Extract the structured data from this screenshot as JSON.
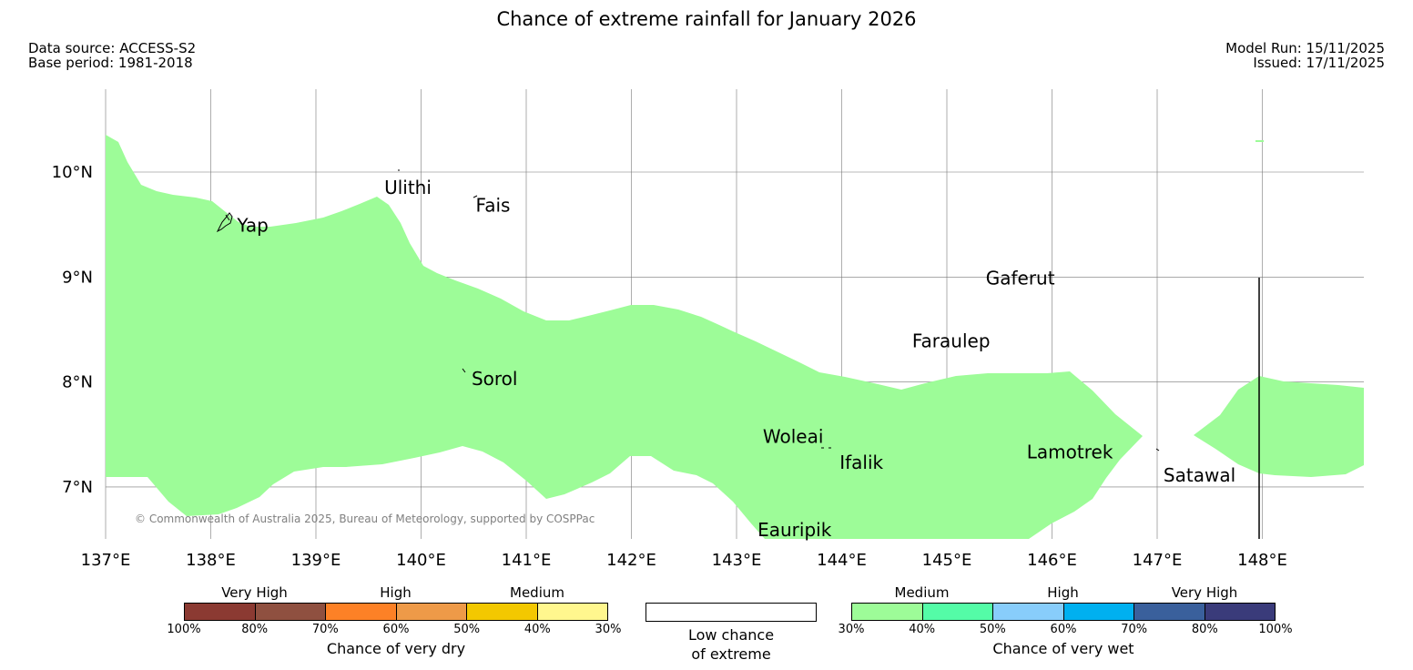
{
  "title": "Chance of extreme rainfall for January 2026",
  "meta": {
    "data_source": "Data source: ACCESS-S2",
    "base_period": "Base period: 1981-2018",
    "model_run": "Model Run: 15/11/2025",
    "issued": "Issued: 17/11/2025"
  },
  "map": {
    "fill_color": "#9dfc98",
    "lon_range": [
      137.0,
      149.0
    ],
    "lat_range": [
      6.5,
      10.8
    ],
    "lon_ticks": [
      {
        "value": 137,
        "label": "137°E"
      },
      {
        "value": 138,
        "label": "138°E"
      },
      {
        "value": 139,
        "label": "139°E"
      },
      {
        "value": 140,
        "label": "140°E"
      },
      {
        "value": 141,
        "label": "141°E"
      },
      {
        "value": 142,
        "label": "142°E"
      },
      {
        "value": 143,
        "label": "143°E"
      },
      {
        "value": 144,
        "label": "144°E"
      },
      {
        "value": 145,
        "label": "145°E"
      },
      {
        "value": 146,
        "label": "146°E"
      },
      {
        "value": 147,
        "label": "147°E"
      },
      {
        "value": 148,
        "label": "148°E"
      }
    ],
    "lat_ticks": [
      {
        "value": 10,
        "label": "10°N"
      },
      {
        "value": 9,
        "label": "9°N"
      },
      {
        "value": 8,
        "label": "8°N"
      },
      {
        "value": 7,
        "label": "7°N"
      }
    ],
    "islands": [
      {
        "name": "Yap",
        "lon": 138.25,
        "lat": 9.5
      },
      {
        "name": "Ulithi",
        "lon": 139.65,
        "lat": 9.86
      },
      {
        "name": "Fais",
        "lon": 140.52,
        "lat": 9.69
      },
      {
        "name": "Gaferut",
        "lon": 145.37,
        "lat": 9.0
      },
      {
        "name": "Faraulep",
        "lon": 144.67,
        "lat": 8.4
      },
      {
        "name": "Sorol",
        "lon": 140.48,
        "lat": 8.04
      },
      {
        "name": "Woleai",
        "lon": 143.25,
        "lat": 7.49
      },
      {
        "name": "Ifalik",
        "lon": 143.98,
        "lat": 7.24
      },
      {
        "name": "Lamotrek",
        "lon": 145.76,
        "lat": 7.34
      },
      {
        "name": "Satawal",
        "lon": 147.06,
        "lat": 7.12
      },
      {
        "name": "Eauripik",
        "lon": 143.2,
        "lat": 6.6
      }
    ],
    "copyright": "© Commonwealth of Australia 2025, Bureau of Meteorology, supported by COSPPac"
  },
  "legend": {
    "dry": {
      "label": "Chance of very dry",
      "categories": [
        "Very High",
        "High",
        "Medium"
      ],
      "colors": [
        "#8b3a32",
        "#8f5040",
        "#fd8126",
        "#ee9a48",
        "#f3c800",
        "#fff78e"
      ],
      "ticks": [
        "100%",
        "80%",
        "70%",
        "60%",
        "50%",
        "40%",
        "30%"
      ]
    },
    "neutral": {
      "label_line1": "Low chance",
      "label_line2": "of extreme",
      "color": "#ffffff"
    },
    "wet": {
      "label": "Chance of very wet",
      "categories": [
        "Medium",
        "High",
        "Very High"
      ],
      "colors": [
        "#9dfc98",
        "#54fca7",
        "#88cdfb",
        "#00b0f0",
        "#3a609c",
        "#3a3b7a"
      ],
      "ticks": [
        "30%",
        "40%",
        "50%",
        "60%",
        "70%",
        "80%",
        "100%"
      ]
    }
  }
}
